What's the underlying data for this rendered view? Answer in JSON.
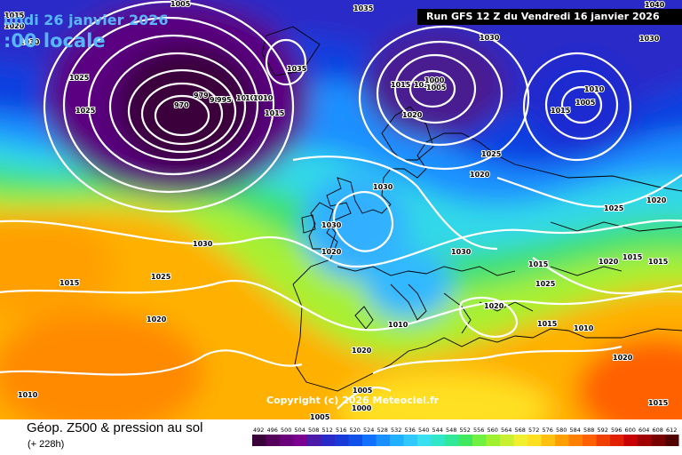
{
  "header": {
    "date_text": "undi 26 janvier 2026",
    "time_text": ":00 locale",
    "run_text": "Run GFS 12 Z du Vendredi 16 janvier 2026"
  },
  "footer": {
    "title": "Géop. Z500 & pression au sol",
    "subtitle": "(+ 228h)",
    "copyright": "Copyright (c) 2026 Meteociel.fr"
  },
  "legend": {
    "values": [
      "492",
      "496",
      "500",
      "504",
      "508",
      "512",
      "516",
      "520",
      "524",
      "528",
      "532",
      "536",
      "540",
      "544",
      "548",
      "552",
      "556",
      "560",
      "564",
      "568",
      "572",
      "576",
      "580",
      "584",
      "588",
      "592",
      "596",
      "600",
      "604",
      "608",
      "612"
    ],
    "colors": [
      "#3a003a",
      "#55005a",
      "#6a007a",
      "#7a0090",
      "#4b1aa8",
      "#2a2ac8",
      "#1a3ad8",
      "#1050e8",
      "#1070ff",
      "#1a90ff",
      "#20b0ff",
      "#30c8ff",
      "#38e0f0",
      "#30e8c8",
      "#30e898",
      "#40e860",
      "#70f040",
      "#a0f030",
      "#c8f030",
      "#f0f030",
      "#ffe020",
      "#ffc010",
      "#ffa000",
      "#ff8000",
      "#ff6000",
      "#f04000",
      "#e02000",
      "#c80000",
      "#a00000",
      "#780000",
      "#500000"
    ]
  },
  "isobar_labels": [
    {
      "text": "1005",
      "name": "isobar-label-1005-a"
    },
    {
      "text": "1015",
      "name": "isobar-label-1015-a"
    },
    {
      "text": "1020",
      "name": "isobar-label-1020-a"
    },
    {
      "text": "1030",
      "name": "isobar-label-1030-a"
    },
    {
      "text": "1025",
      "name": "isobar-label-1025-a"
    },
    {
      "text": "970",
      "name": "isobar-label-970"
    },
    {
      "text": "979",
      "name": "isobar-label-979"
    },
    {
      "text": "985",
      "name": "isobar-label-985"
    },
    {
      "text": "995",
      "name": "isobar-label-995"
    },
    {
      "text": "1010",
      "name": "isobar-label-1010-a"
    },
    {
      "text": "1010",
      "name": "isobar-label-1010-b"
    },
    {
      "text": "1010",
      "name": "isobar-label-1010-c"
    },
    {
      "text": "1035",
      "name": "isobar-label-1035-a"
    },
    {
      "text": "1015",
      "name": "isobar-label-1015-b"
    },
    {
      "text": "1035",
      "name": "isobar-label-1035-b"
    },
    {
      "text": "1030",
      "name": "isobar-label-1030-b"
    },
    {
      "text": "1015",
      "name": "isobar-label-1015-c"
    },
    {
      "text": "1010",
      "name": "isobar-label-1010-d"
    },
    {
      "text": "1005",
      "name": "isobar-label-1005-b"
    },
    {
      "text": "1000",
      "name": "isobar-label-1000"
    },
    {
      "text": "1020",
      "name": "isobar-label-1020-b"
    },
    {
      "text": "1010",
      "name": "isobar-label-1010-e"
    },
    {
      "text": "1015",
      "name": "isobar-label-1015-d"
    },
    {
      "text": "1005",
      "name": "isobar-label-1005-c"
    },
    {
      "text": "1030",
      "name": "isobar-label-1030-c"
    },
    {
      "text": "1040",
      "name": "isobar-label-1040"
    },
    {
      "text": "1025",
      "name": "isobar-label-1025-b"
    },
    {
      "text": "1030",
      "name": "isobar-label-1030-d"
    },
    {
      "text": "1030",
      "name": "isobar-label-1030-e"
    },
    {
      "text": "1020",
      "name": "isobar-label-1020-c"
    },
    {
      "text": "1030",
      "name": "isobar-label-1030-f"
    },
    {
      "text": "1030",
      "name": "isobar-label-1030-g"
    },
    {
      "text": "1020",
      "name": "isobar-label-1020-d"
    },
    {
      "text": "1025",
      "name": "isobar-label-1025-c"
    },
    {
      "text": "1025",
      "name": "isobar-label-1025-d"
    },
    {
      "text": "1020",
      "name": "isobar-label-1020-e"
    },
    {
      "text": "1015",
      "name": "isobar-label-1015-e"
    },
    {
      "text": "1010",
      "name": "isobar-label-1010-f"
    },
    {
      "text": "1015",
      "name": "isobar-label-1015-f"
    },
    {
      "text": "1025",
      "name": "isobar-label-1025-e"
    },
    {
      "text": "1025",
      "name": "isobar-label-1025-f"
    },
    {
      "text": "1020",
      "name": "isobar-label-1020-f"
    },
    {
      "text": "1015",
      "name": "isobar-label-1015-g"
    },
    {
      "text": "1015",
      "name": "isobar-label-1015-h"
    },
    {
      "text": "1015",
      "name": "isobar-label-1015-i"
    },
    {
      "text": "1010",
      "name": "isobar-label-1010-g"
    },
    {
      "text": "1020",
      "name": "isobar-label-1020-g"
    },
    {
      "text": "1020",
      "name": "isobar-label-1020-h"
    },
    {
      "text": "1010",
      "name": "isobar-label-1010-h"
    },
    {
      "text": "1020",
      "name": "isobar-label-1020-i"
    },
    {
      "text": "1005",
      "name": "isobar-label-1005-d"
    },
    {
      "text": "1000",
      "name": "isobar-label-1000-b"
    },
    {
      "text": "1005",
      "name": "isobar-label-1005-e"
    },
    {
      "text": "1020",
      "name": "isobar-label-1020-j"
    },
    {
      "text": "1015",
      "name": "isobar-label-1015-j"
    }
  ]
}
